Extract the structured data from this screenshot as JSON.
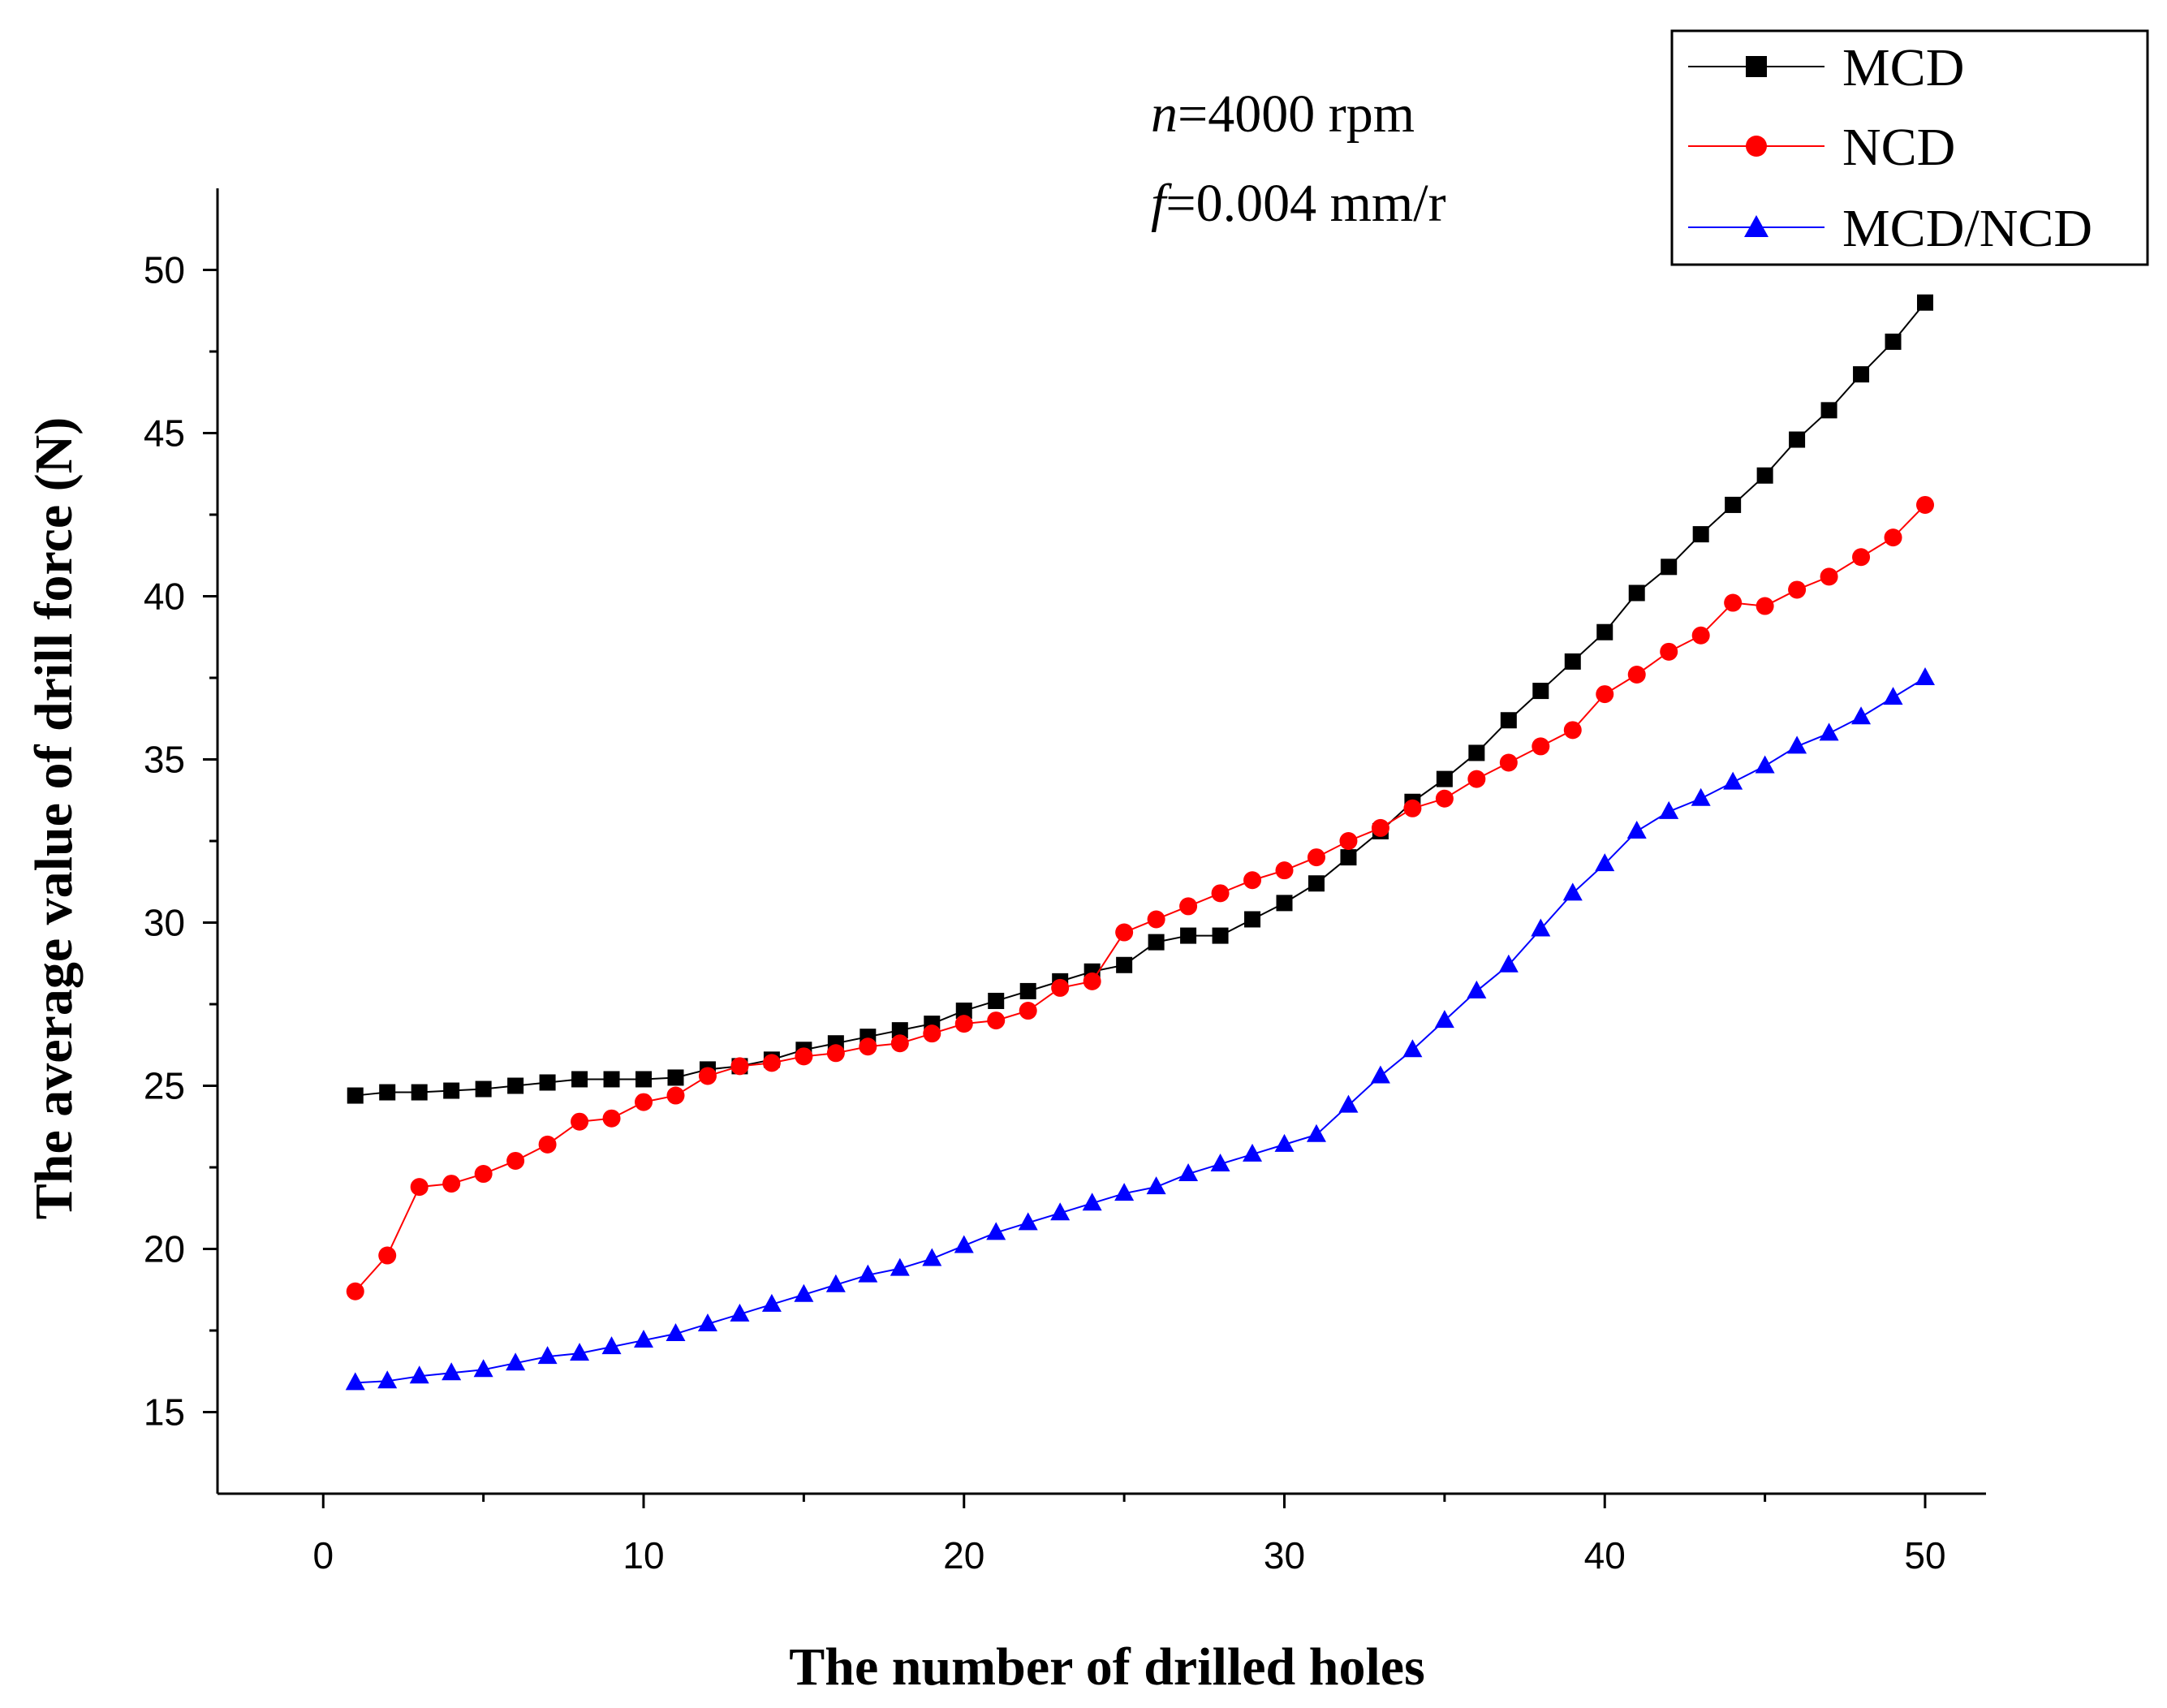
{
  "chart_data": {
    "type": "line",
    "title": "",
    "xlabel": "The number of drilled holes",
    "ylabel": "The average value of drill force (N)",
    "xlim": [
      -3.3,
      51.9
    ],
    "ylim": [
      12.5,
      52.5
    ],
    "xticks": [
      0,
      10,
      20,
      30,
      40,
      50
    ],
    "yticks": [
      15,
      20,
      25,
      30,
      35,
      40,
      45,
      50
    ],
    "grid": false,
    "legend_position": "top-right",
    "annotations": {
      "rpm": {
        "var": "n",
        "value": "=4000 rpm"
      },
      "feed": {
        "var": "f",
        "value": "=0.004 mm/r"
      }
    },
    "x": [
      1,
      2,
      3,
      4,
      5,
      6,
      7,
      8,
      9,
      10,
      11,
      12,
      13,
      14,
      15,
      16,
      17,
      18,
      19,
      20,
      21,
      22,
      23,
      24,
      25,
      26,
      27,
      28,
      29,
      30,
      31,
      32,
      33,
      34,
      35,
      36,
      37,
      38,
      39,
      40,
      41,
      42,
      43,
      44,
      45,
      46,
      47,
      48,
      49,
      50
    ],
    "series": [
      {
        "name": "MCD",
        "color": "#000000",
        "marker": "square",
        "values": [
          24.7,
          24.8,
          24.8,
          24.85,
          24.9,
          25.0,
          25.1,
          25.2,
          25.2,
          25.2,
          25.25,
          25.5,
          25.6,
          25.8,
          26.1,
          26.3,
          26.5,
          26.7,
          26.9,
          27.3,
          27.6,
          27.9,
          28.2,
          28.5,
          28.7,
          29.4,
          29.6,
          29.6,
          30.1,
          30.6,
          31.2,
          32.0,
          32.8,
          33.7,
          34.4,
          35.2,
          36.2,
          37.1,
          38.0,
          38.9,
          40.1,
          40.9,
          41.9,
          42.8,
          43.7,
          44.8,
          45.7,
          46.8,
          47.8,
          49.0
        ]
      },
      {
        "name": "NCD",
        "color": "#ff0000",
        "marker": "circle",
        "values": [
          18.7,
          19.8,
          21.9,
          22.0,
          22.3,
          22.7,
          23.2,
          23.9,
          24.0,
          24.5,
          24.7,
          25.3,
          25.6,
          25.7,
          25.9,
          26.0,
          26.2,
          26.3,
          26.6,
          26.9,
          27.0,
          27.3,
          28.0,
          28.2,
          29.7,
          30.1,
          30.5,
          30.9,
          31.3,
          31.6,
          32.0,
          32.5,
          32.9,
          33.5,
          33.8,
          34.4,
          34.9,
          35.4,
          35.9,
          37.0,
          37.6,
          38.3,
          38.8,
          39.8,
          39.7,
          40.2,
          40.6,
          41.2,
          41.8,
          42.8
        ]
      },
      {
        "name": "MCD/NCD",
        "color": "#0000ff",
        "marker": "triangle",
        "values": [
          15.9,
          15.95,
          16.1,
          16.2,
          16.3,
          16.5,
          16.7,
          16.8,
          17.0,
          17.2,
          17.4,
          17.7,
          18.0,
          18.3,
          18.6,
          18.9,
          19.2,
          19.4,
          19.7,
          20.1,
          20.5,
          20.8,
          21.1,
          21.4,
          21.7,
          21.9,
          22.3,
          22.6,
          22.9,
          23.2,
          23.5,
          24.4,
          25.3,
          26.1,
          27.0,
          27.9,
          28.7,
          29.8,
          30.9,
          31.8,
          32.8,
          33.4,
          33.8,
          34.3,
          34.8,
          35.4,
          35.8,
          36.3,
          36.9,
          37.5
        ]
      }
    ]
  }
}
